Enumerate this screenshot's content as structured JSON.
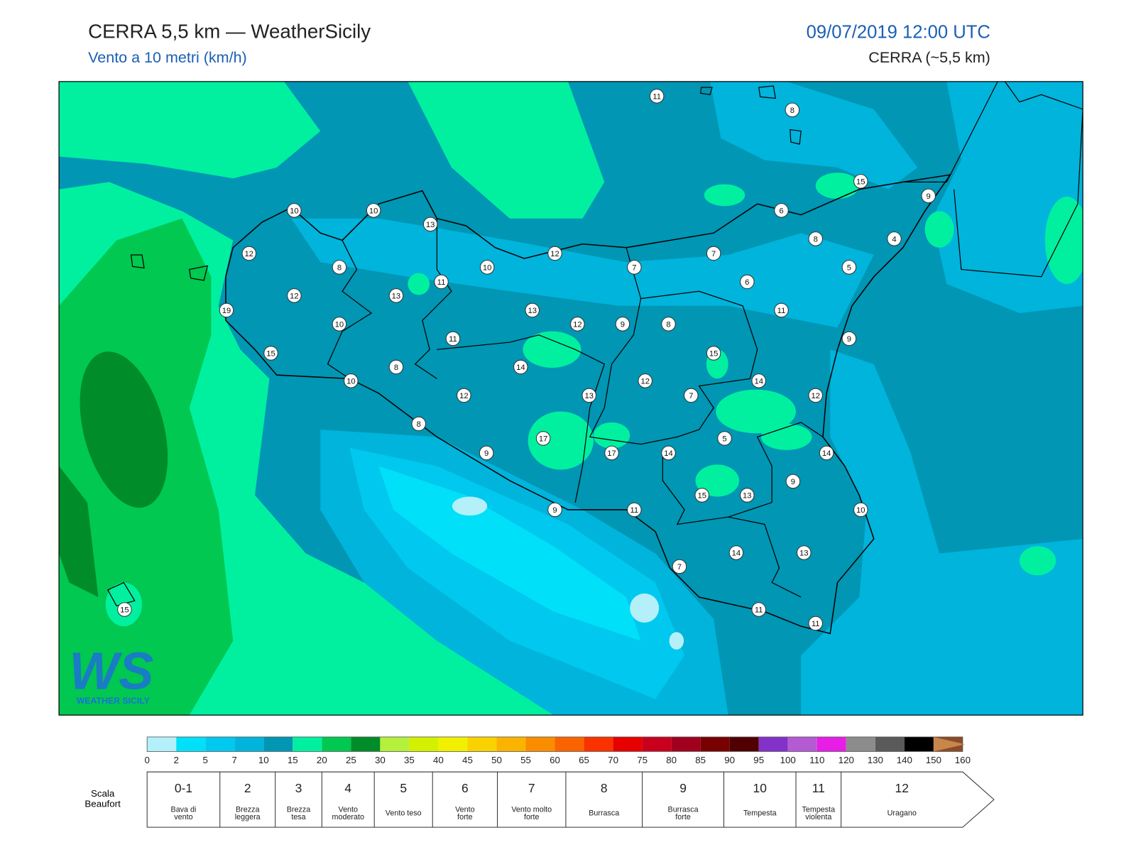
{
  "header": {
    "title": "CERRA 5,5 km — WeatherSicily",
    "subtitle": "Vento a 10 metri (km/h)",
    "date": "09/07/2019 12:00 UTC",
    "model": "CERRA (~5,5 km)"
  },
  "stations": [
    11,
    8,
    15,
    9,
    10,
    10,
    13,
    6,
    12,
    12,
    8,
    4,
    8,
    10,
    7,
    7,
    5,
    11,
    6,
    12,
    13,
    19,
    13,
    11,
    10,
    12,
    9,
    8,
    11,
    9,
    15,
    15,
    8,
    14,
    10,
    12,
    14,
    12,
    13,
    7,
    12,
    8,
    5,
    17,
    9,
    17,
    14,
    14,
    9,
    15,
    13,
    9,
    11,
    10,
    14,
    13,
    7,
    11,
    11,
    15
  ],
  "colorbar": {
    "ticks": [
      0,
      2,
      5,
      7,
      10,
      15,
      20,
      25,
      30,
      35,
      40,
      45,
      50,
      55,
      60,
      65,
      70,
      75,
      80,
      85,
      90,
      95,
      100,
      110,
      120,
      130,
      140,
      150,
      160
    ],
    "colors": [
      "#b4f0fa",
      "#00e0f8",
      "#00c8ef",
      "#00b4dc",
      "#0096b4",
      "#00f0a0",
      "#00c850",
      "#008c28",
      "#b4f03c",
      "#d2f000",
      "#f0f000",
      "#fad200",
      "#fab400",
      "#fa8c00",
      "#fa6400",
      "#fa3200",
      "#e60000",
      "#c8001e",
      "#a0001e",
      "#780000",
      "#500000",
      "#8232c8",
      "#b45ad2",
      "#e61ee6",
      "#8c8c8c",
      "#5a5a5a",
      "#000000",
      "#8c4b28",
      "#c8864b"
    ]
  },
  "beaufort": {
    "label": [
      "Scala",
      "Beaufort"
    ],
    "classes": [
      {
        "force": "0-1",
        "description": [
          "Bava di",
          "vento"
        ]
      },
      {
        "force": "2",
        "description": [
          "Brezza",
          "leggera"
        ]
      },
      {
        "force": "3",
        "description": [
          "Brezza",
          "tesa"
        ]
      },
      {
        "force": "4",
        "description": [
          "Vento",
          "moderato"
        ]
      },
      {
        "force": "5",
        "description": [
          "Vento teso"
        ]
      },
      {
        "force": "6",
        "description": [
          "Vento",
          "forte"
        ]
      },
      {
        "force": "7",
        "description": [
          "Vento molto",
          "forte"
        ]
      },
      {
        "force": "8",
        "description": [
          "Burrasca"
        ]
      },
      {
        "force": "9",
        "description": [
          "Burrasca",
          "forte"
        ]
      },
      {
        "force": "10",
        "description": [
          "Tempesta"
        ]
      },
      {
        "force": "11",
        "description": [
          "Tempesta",
          "violenta"
        ]
      },
      {
        "force": "12",
        "description": [
          "Uragano"
        ]
      }
    ]
  },
  "logo": {
    "mark": "WS",
    "name": "WEATHER SICILY"
  }
}
